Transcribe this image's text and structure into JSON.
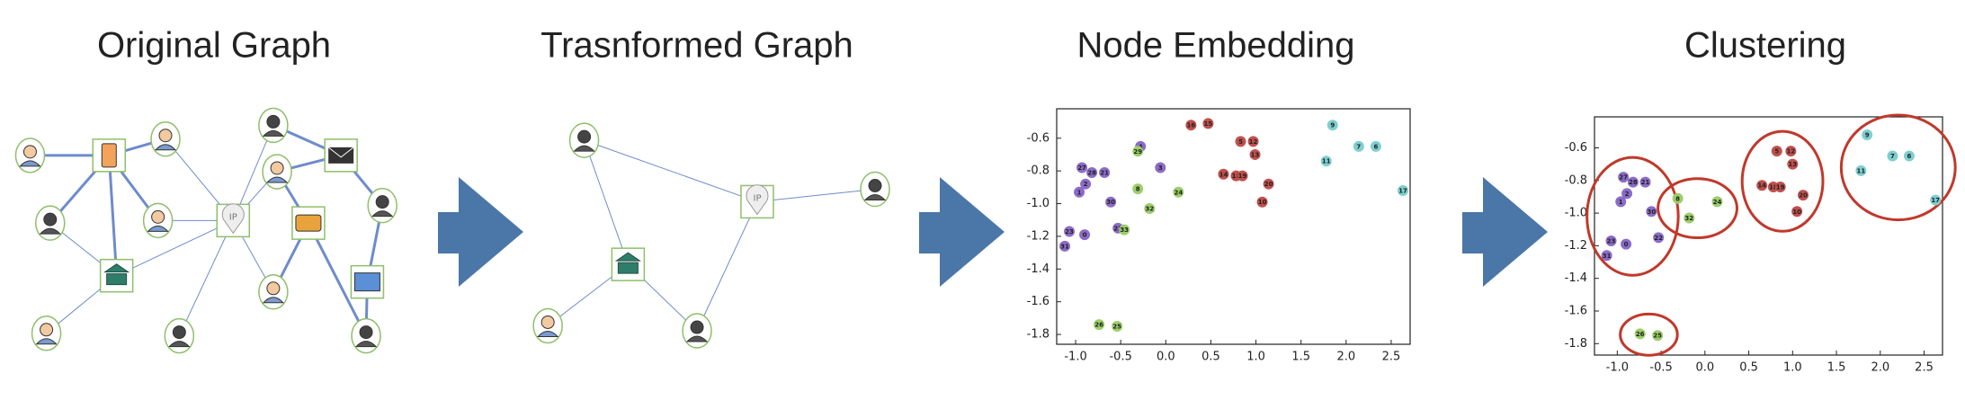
{
  "panels": [
    {
      "title": "Original Graph"
    },
    {
      "title": "Trasnformed Graph"
    },
    {
      "title": "Node Embedding"
    },
    {
      "title": "Clustering"
    }
  ],
  "graphs": [
    {
      "ip_label": "IP"
    },
    {
      "ip_label": "IP"
    }
  ],
  "charts": [
    {
      "type": "scatter",
      "circled": false,
      "xlim": [
        -1.21,
        2.71
      ],
      "ylim": [
        -1.86,
        -0.42
      ],
      "xticks": [
        {
          "value": -1,
          "label": "-1.0"
        },
        -0.5,
        {
          "value": 0,
          "label": "0.0"
        },
        0.5,
        {
          "value": 1,
          "label": "1.0"
        },
        1.5,
        {
          "value": 2,
          "label": "2.0"
        },
        2.5
      ],
      "yticks": [
        -0.6,
        -0.8,
        {
          "value": -1,
          "label": "-1.0"
        },
        -1.2,
        -1.4,
        -1.6,
        -1.8
      ],
      "series": [
        {
          "color": "#7ecfd0",
          "x": [
            1.85,
            2.14,
            2.33,
            1.78,
            2.63
          ],
          "y": [
            -0.52,
            -0.65,
            -0.65,
            -0.74,
            -0.92
          ],
          "labels": [
            9,
            7,
            6,
            11,
            17
          ]
        },
        {
          "color": "#c0504d",
          "x": [
            0.28,
            0.47,
            0.83,
            0.97,
            0.99,
            0.64,
            0.78,
            0.85,
            1.14,
            1.07
          ],
          "y": [
            -0.52,
            -0.51,
            -0.62,
            -0.62,
            -0.7,
            -0.82,
            -0.83,
            -0.83,
            -0.88,
            -0.99
          ],
          "labels": [
            16,
            15,
            5,
            12,
            13,
            14,
            18,
            19,
            20,
            10
          ]
        },
        {
          "color": "#8c6bc8",
          "x": [
            -0.28,
            -0.93,
            -0.82,
            -0.68,
            -0.06,
            -0.89,
            -0.96,
            -0.61,
            -1.07,
            -0.9,
            -1.12,
            -0.53
          ],
          "y": [
            -0.65,
            -0.78,
            -0.81,
            -0.81,
            -0.78,
            -0.88,
            -0.93,
            -0.99,
            -1.17,
            -1.19,
            -1.26,
            -1.15
          ],
          "labels": [
            4,
            27,
            28,
            21,
            3,
            2,
            1,
            30,
            23,
            0,
            31,
            22
          ]
        },
        {
          "color": "#9bcf6b",
          "x": [
            -0.31,
            -0.31,
            0.14,
            -0.18,
            -0.46
          ],
          "y": [
            -0.68,
            -0.91,
            -0.93,
            -1.03,
            -1.16
          ],
          "labels": [
            29,
            8,
            24,
            32,
            33
          ]
        },
        {
          "color": "#9bcf6b",
          "x": [
            -0.74,
            -0.54
          ],
          "y": [
            -1.74,
            -1.75
          ],
          "labels": [
            26,
            25
          ]
        }
      ]
    },
    {
      "type": "scatter",
      "circled": true,
      "xlim": [
        -1.26,
        2.71
      ],
      "ylim": [
        -1.87,
        -0.41
      ],
      "xticks": [
        {
          "value": -1,
          "label": "-1.0"
        },
        -0.5,
        {
          "value": 0,
          "label": "0.0"
        },
        0.5,
        {
          "value": 1,
          "label": "1.0"
        },
        1.5,
        {
          "value": 2,
          "label": "2.0"
        },
        2.5
      ],
      "yticks": [
        -0.6,
        -0.8,
        {
          "value": -1,
          "label": "-1.0"
        },
        -1.2,
        -1.4,
        -1.6,
        -1.8
      ],
      "series": [
        {
          "color": "#7ecfd0",
          "x": [
            1.85,
            2.14,
            2.33,
            1.78,
            2.63
          ],
          "y": [
            -0.52,
            -0.65,
            -0.65,
            -0.74,
            -0.92
          ],
          "labels": [
            9,
            7,
            6,
            11,
            17
          ]
        },
        {
          "color": "#c0504d",
          "x": [
            0.82,
            0.98,
            1.0,
            0.65,
            0.78,
            0.86,
            1.12,
            1.05
          ],
          "y": [
            -0.62,
            -0.62,
            -0.7,
            -0.83,
            -0.84,
            -0.84,
            -0.89,
            -0.99
          ],
          "labels": [
            5,
            12,
            13,
            14,
            18,
            19,
            20,
            10
          ]
        },
        {
          "color": "#8c6bc8",
          "x": [
            -0.93,
            -0.82,
            -0.68,
            -0.89,
            -0.96,
            -0.61,
            -1.07,
            -0.9,
            -1.12,
            -0.53
          ],
          "y": [
            -0.78,
            -0.81,
            -0.81,
            -0.88,
            -0.93,
            -0.99,
            -1.17,
            -1.19,
            -1.26,
            -1.15
          ],
          "labels": [
            27,
            28,
            21,
            2,
            1,
            30,
            23,
            0,
            31,
            22
          ]
        },
        {
          "color": "#9bcf6b",
          "x": [
            -0.31,
            0.14,
            -0.18
          ],
          "y": [
            -0.91,
            -0.93,
            -1.03
          ],
          "labels": [
            8,
            24,
            32
          ]
        },
        {
          "color": "#9bcf6b",
          "x": [
            -0.74,
            -0.54
          ],
          "y": [
            -1.74,
            -1.75
          ],
          "labels": [
            26,
            25
          ]
        }
      ]
    }
  ]
}
